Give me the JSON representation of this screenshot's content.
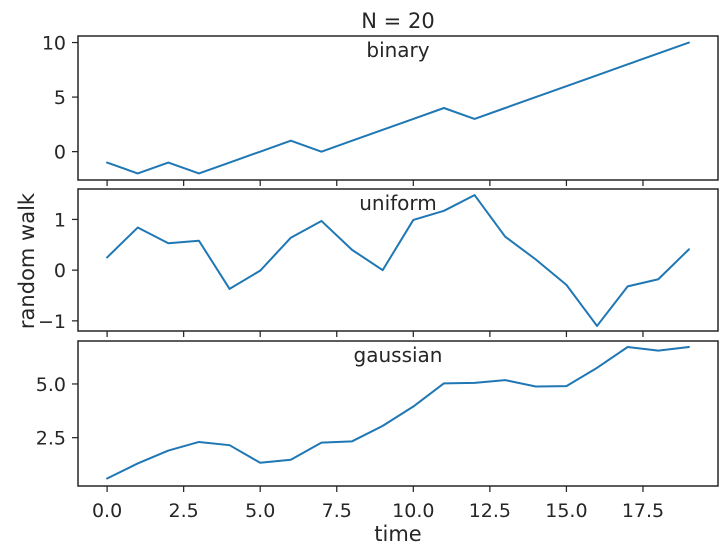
{
  "figure": {
    "title": "N = 20",
    "xlabel": "time",
    "ylabel": "random walk",
    "line_color": "#1f77b4"
  },
  "chart_data": [
    {
      "type": "line",
      "title": "binary",
      "x": [
        0,
        1,
        2,
        3,
        4,
        5,
        6,
        7,
        8,
        9,
        10,
        11,
        12,
        13,
        14,
        15,
        16,
        17,
        18,
        19
      ],
      "series": [
        {
          "values": [
            -1,
            -2,
            -1,
            -2,
            -1,
            0,
            1,
            0,
            1,
            2,
            3,
            4,
            3,
            4,
            5,
            6,
            7,
            8,
            9,
            10
          ]
        }
      ],
      "xlim": [
        -0.95,
        19.95
      ],
      "ylim": [
        -2.6,
        10.6
      ],
      "xticks": [
        0,
        2.5,
        5,
        7.5,
        10,
        12.5,
        15,
        17.5
      ],
      "yticks": [
        0,
        5,
        10
      ],
      "ytick_labels": [
        "0",
        "5",
        "10"
      ]
    },
    {
      "type": "line",
      "title": "uniform",
      "x": [
        0,
        1,
        2,
        3,
        4,
        5,
        6,
        7,
        8,
        9,
        10,
        11,
        12,
        13,
        14,
        15,
        16,
        17,
        18,
        19
      ],
      "series": [
        {
          "values": [
            0.25,
            0.84,
            0.53,
            0.58,
            -0.37,
            -0.01,
            0.64,
            0.97,
            0.4,
            0.0,
            0.99,
            1.17,
            1.48,
            0.66,
            0.21,
            -0.29,
            -1.1,
            -0.32,
            -0.18,
            0.41
          ]
        }
      ],
      "xlim": [
        -0.95,
        19.95
      ],
      "ylim": [
        -1.2,
        1.6
      ],
      "xticks": [
        0,
        2.5,
        5,
        7.5,
        10,
        12.5,
        15,
        17.5
      ],
      "yticks": [
        -1,
        0,
        1
      ],
      "ytick_labels": [
        "−1",
        "0",
        "1"
      ]
    },
    {
      "type": "line",
      "title": "gaussian",
      "x": [
        0,
        1,
        2,
        3,
        4,
        5,
        6,
        7,
        8,
        9,
        10,
        11,
        12,
        13,
        14,
        15,
        16,
        17,
        18,
        19
      ],
      "series": [
        {
          "values": [
            0.6,
            1.3,
            1.9,
            2.3,
            2.15,
            1.33,
            1.47,
            2.27,
            2.33,
            3.05,
            3.95,
            5.03,
            5.05,
            5.18,
            4.88,
            4.9,
            5.75,
            6.72,
            6.55,
            6.72
          ]
        }
      ],
      "xlim": [
        -0.95,
        19.95
      ],
      "ylim": [
        0.25,
        7.0
      ],
      "xticks": [
        0,
        2.5,
        5,
        7.5,
        10,
        12.5,
        15,
        17.5
      ],
      "xtick_labels": [
        "0.0",
        "2.5",
        "5.0",
        "7.5",
        "10.0",
        "12.5",
        "15.0",
        "17.5"
      ],
      "yticks": [
        2.5,
        5.0
      ],
      "ytick_labels": [
        "2.5",
        "5.0"
      ]
    }
  ]
}
